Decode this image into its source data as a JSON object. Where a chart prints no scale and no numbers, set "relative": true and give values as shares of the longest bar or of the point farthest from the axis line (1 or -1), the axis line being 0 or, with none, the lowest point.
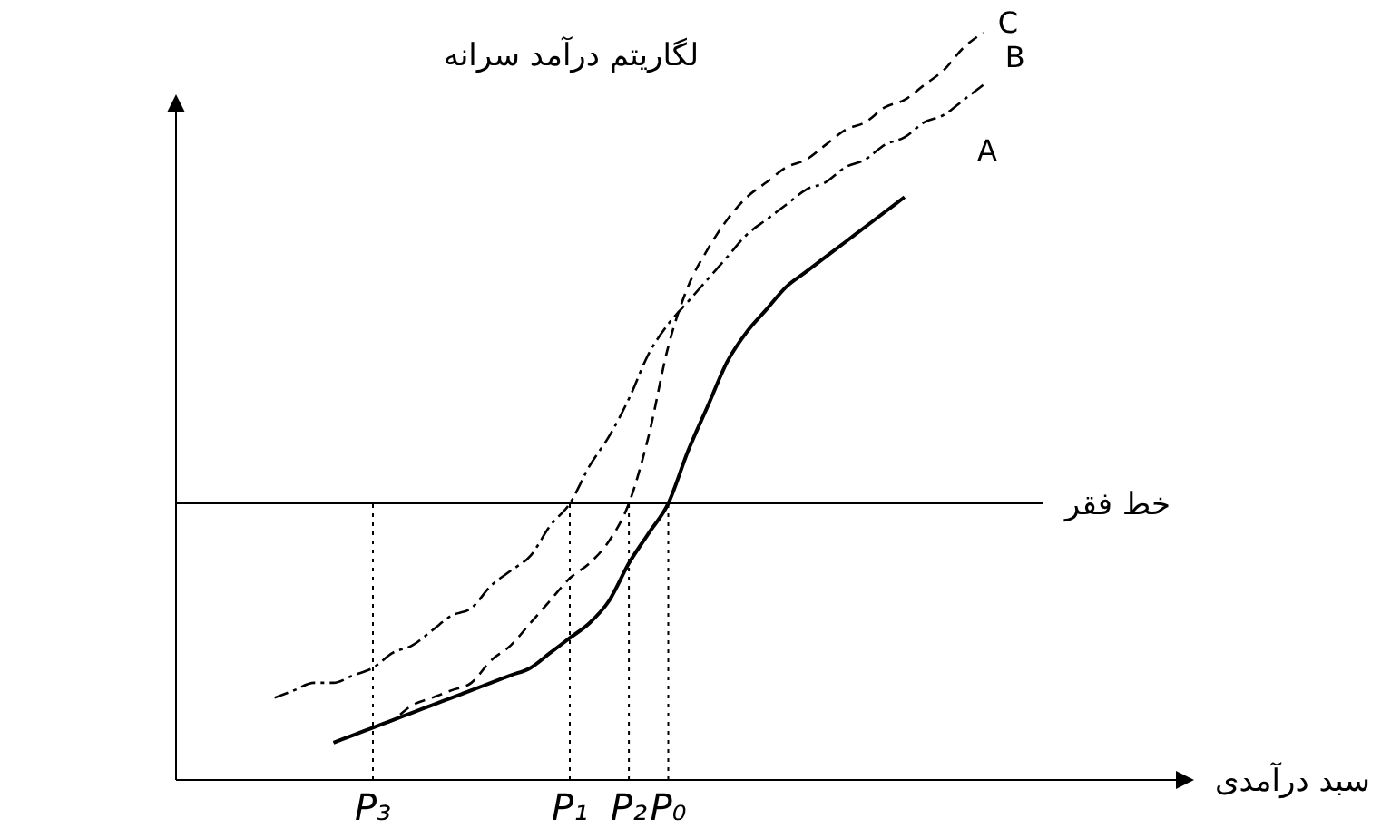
{
  "chart_data": {
    "type": "line",
    "relative": true,
    "xlabel": "سبد درآمدی",
    "ylabel": "لگاریتم درآمد سرانه",
    "categories": [
      null,
      null,
      null,
      null,
      null,
      null,
      null,
      null,
      null,
      null,
      "P₃",
      null,
      null,
      null,
      null,
      null,
      null,
      null,
      null,
      null,
      "P₁",
      null,
      null,
      "P₂",
      null,
      "P₀",
      null,
      null,
      null,
      null,
      null,
      null,
      null,
      null,
      null,
      null,
      null,
      null,
      null,
      null,
      null,
      null,
      null,
      null,
      null,
      null,
      null,
      null,
      null,
      null,
      null,
      null,
      null,
      null,
      null,
      null,
      null,
      null,
      null,
      null
    ],
    "series": [
      {
        "name": "A",
        "color": "#000000",
        "line_style": "solid",
        "values": [
          null,
          null,
          null,
          null,
          null,
          null,
          null,
          null,
          0.05,
          0.06,
          0.07,
          0.08,
          0.09,
          0.1,
          0.11,
          0.12,
          0.13,
          0.14,
          0.15,
          0.17,
          0.19,
          0.21,
          0.24,
          0.29,
          0.33,
          0.37,
          0.44,
          0.5,
          0.56,
          0.6,
          0.63,
          0.66,
          0.68,
          0.7,
          0.72,
          0.74,
          0.76,
          0.78,
          null,
          null,
          null,
          null,
          null,
          null,
          null,
          null,
          null,
          null,
          null,
          null,
          null,
          null,
          null,
          null,
          null,
          null,
          null,
          null,
          null,
          null
        ]
      },
      {
        "name": "B",
        "color": "#000000",
        "line_style": "dashdot",
        "values": [
          null,
          null,
          null,
          null,
          null,
          0.11,
          0.12,
          0.13,
          0.13,
          0.14,
          0.15,
          0.17,
          0.18,
          0.2,
          0.22,
          0.23,
          0.26,
          0.28,
          0.3,
          0.34,
          0.37,
          0.42,
          0.46,
          0.51,
          0.57,
          0.61,
          0.64,
          0.67,
          0.7,
          0.73,
          0.75,
          0.77,
          0.79,
          0.8,
          0.82,
          0.83,
          0.85,
          0.86,
          0.88,
          0.89,
          0.91,
          0.93,
          null,
          null,
          null,
          null,
          null,
          null,
          null,
          null,
          null,
          null,
          null,
          null,
          null,
          null,
          null,
          null,
          null,
          null
        ]
      },
      {
        "name": "C",
        "color": "#000000",
        "line_style": "dashed",
        "values": [
          null,
          null,
          null,
          null,
          null,
          null,
          null,
          null,
          0.05,
          0.06,
          0.07,
          0.08,
          0.1,
          0.11,
          0.12,
          0.13,
          0.16,
          0.18,
          0.21,
          0.24,
          0.27,
          0.29,
          0.32,
          0.37,
          0.46,
          0.58,
          0.66,
          0.71,
          0.75,
          0.78,
          0.8,
          0.82,
          0.83,
          0.85,
          0.87,
          0.88,
          0.9,
          0.91,
          0.93,
          0.95,
          0.98,
          1,
          null,
          null,
          null,
          null,
          null,
          null,
          null,
          null,
          null,
          null,
          null,
          null,
          null,
          null,
          null,
          null,
          null,
          null
        ]
      }
    ],
    "ref_lines": [
      {
        "axis": "y",
        "value": 0.37,
        "label": "خط فقر",
        "line_style": "solid"
      },
      {
        "axis": "x",
        "value": "P₃",
        "line_style": "dotted"
      },
      {
        "axis": "x",
        "value": "P₁",
        "line_style": "dotted"
      },
      {
        "axis": "x",
        "value": "P₂",
        "line_style": "dotted"
      },
      {
        "axis": "x",
        "value": "P₀",
        "line_style": "dotted"
      }
    ]
  }
}
